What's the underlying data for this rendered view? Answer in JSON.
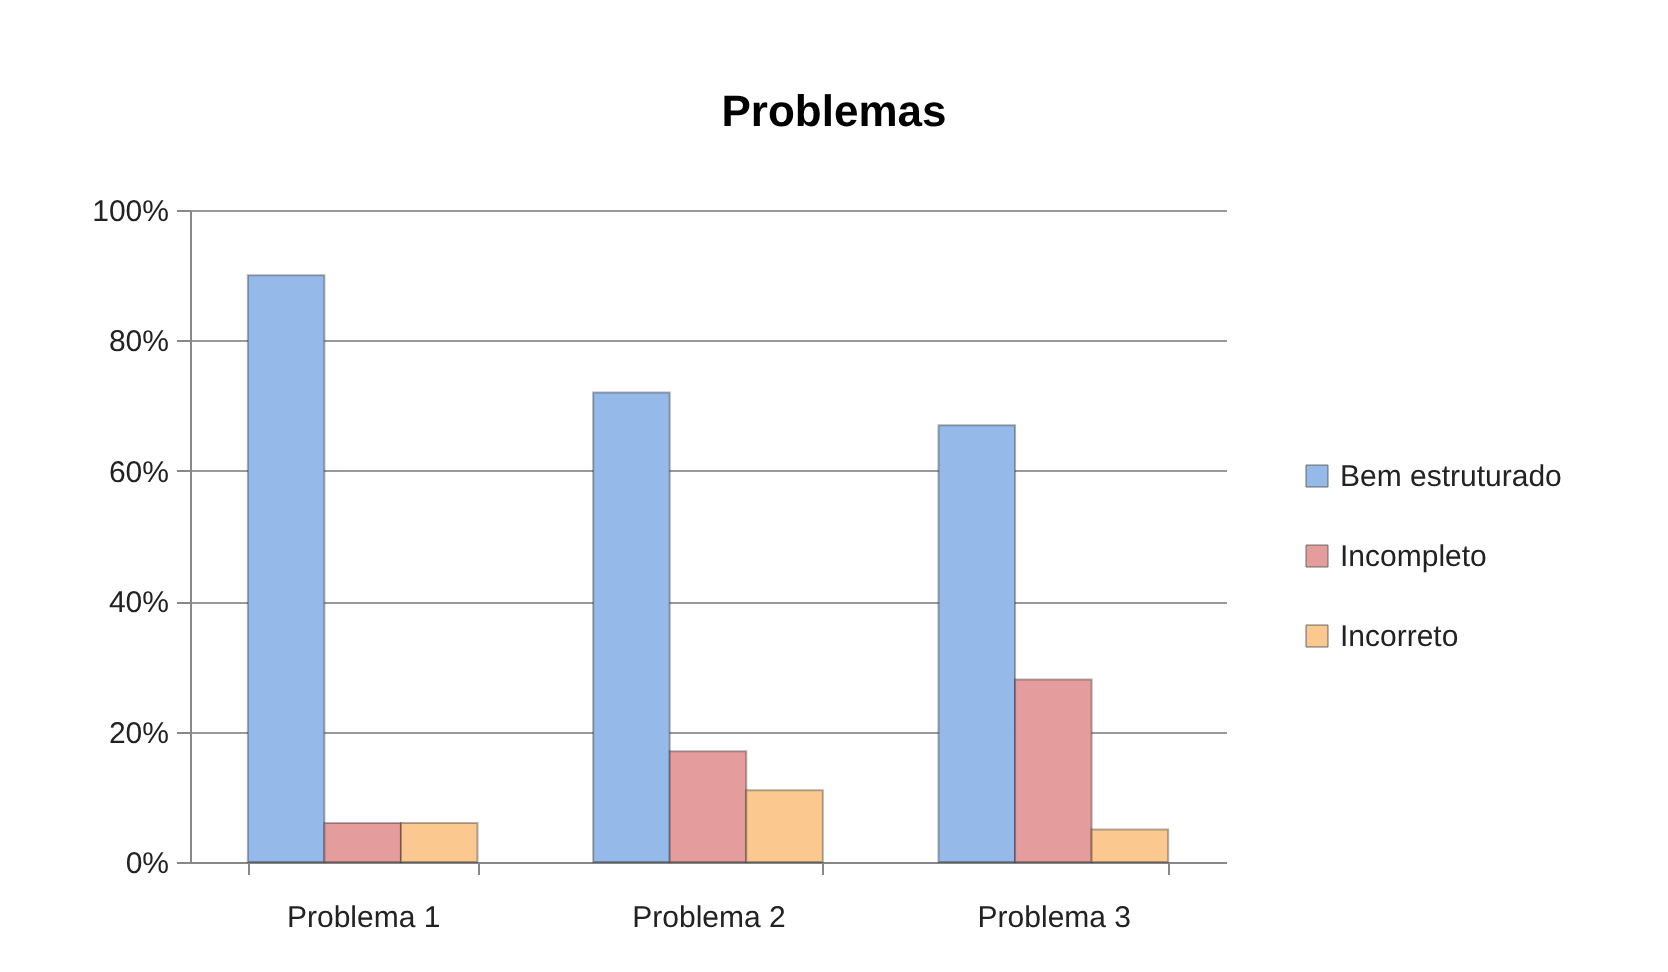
{
  "chart_data": {
    "type": "bar",
    "title": "Problemas",
    "categories": [
      "Problema 1",
      "Problema 2",
      "Problema 3"
    ],
    "series": [
      {
        "name": "Bem estruturado",
        "color": "#95b9e8",
        "values": [
          90,
          72,
          67
        ]
      },
      {
        "name": "Incompleto",
        "color": "#e49d9c",
        "values": [
          6,
          17,
          28
        ]
      },
      {
        "name": "Incorreto",
        "color": "#fbc88f",
        "values": [
          6,
          11,
          5
        ]
      }
    ],
    "ylim": [
      0,
      100
    ],
    "yticks": [
      {
        "value": 0,
        "label": "0%"
      },
      {
        "value": 20,
        "label": "20%"
      },
      {
        "value": 40,
        "label": "40%"
      },
      {
        "value": 60,
        "label": "60%"
      },
      {
        "value": 80,
        "label": "80%"
      },
      {
        "value": 100,
        "label": "100%"
      }
    ],
    "grid": "y",
    "legend": "right"
  }
}
